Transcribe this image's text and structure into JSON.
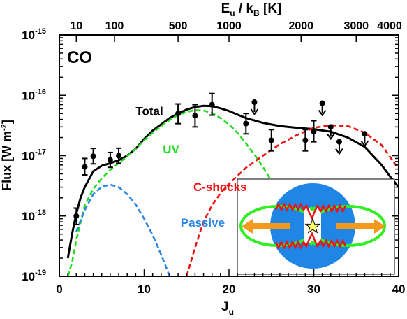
{
  "chart_data": {
    "type": "line",
    "panel_label": "CO",
    "xlabel": "J",
    "xlabel_sub": "u",
    "ylabel": "Flux [W m",
    "ylabel_sup": "-2",
    "ylabel_end": "]",
    "top_axis": {
      "label_main": "E",
      "label_sub1": "u",
      "label_mid": " / k",
      "label_sub2": "B",
      "label_end": " [K]",
      "ticks": [
        {
          "J": 2.0,
          "label": "10"
        },
        {
          "J": 6.5,
          "label": "100"
        },
        {
          "J": 14.0,
          "label": "500"
        },
        {
          "J": 20.0,
          "label": "1000"
        },
        {
          "J": 28.5,
          "label": "2000"
        },
        {
          "J": 35.0,
          "label": "3000"
        },
        {
          "J": 40.5,
          "label": "4000"
        }
      ]
    },
    "xlim": [
      0,
      40
    ],
    "ylim_log10": [
      -19,
      -15
    ],
    "log_y": true,
    "x_ticks": [
      0,
      10,
      20,
      30,
      40
    ],
    "y_ticks": [
      {
        "exp": -15,
        "base": "10",
        "power": "-15"
      },
      {
        "exp": -16,
        "base": "10",
        "power": "-16"
      },
      {
        "exp": -17,
        "base": "10",
        "power": "-17"
      },
      {
        "exp": -18,
        "base": "10",
        "power": "-18"
      },
      {
        "exp": -19,
        "base": "10",
        "power": "-19"
      }
    ],
    "series": [
      {
        "name": "Total",
        "color": "#000000",
        "style": "solid",
        "x": [
          1.0,
          1.5,
          2.0,
          2.5,
          3.0,
          4.0,
          5.0,
          6.0,
          7.0,
          8.0,
          9.0,
          10.0,
          11.0,
          12.0,
          13.0,
          14.0,
          15.0,
          16.0,
          17.0,
          18.0,
          19.0,
          20.0,
          21.0,
          22.0,
          24.0,
          26.0,
          28.0,
          30.0,
          32.0,
          34.0,
          36.0,
          38.0,
          39.0,
          40.0
        ],
        "y": [
          2e-19,
          5e-19,
          1.1e-18,
          2e-18,
          3e-18,
          5.5e-18,
          6.8e-18,
          7.5e-18,
          8.4e-18,
          1e-17,
          1.3e-17,
          1.9e-17,
          2.6e-17,
          3.3e-17,
          4.2e-17,
          5e-17,
          5.8e-17,
          6.4e-17,
          6.7e-17,
          6.6e-17,
          6.1e-17,
          5.5e-17,
          4.8e-17,
          4.2e-17,
          3.5e-17,
          3.1e-17,
          2.9e-17,
          2.75e-17,
          2.5e-17,
          2e-17,
          1.4e-17,
          7e-18,
          4.5e-18,
          3e-18
        ]
      },
      {
        "name": "UV",
        "color": "#22dd22",
        "style": "dashed",
        "x": [
          1.0,
          1.5,
          2.0,
          3.0,
          4.0,
          5.0,
          6.0,
          7.0,
          8.0,
          9.0,
          10.0,
          11.0,
          12.0,
          13.0,
          14.0,
          15.0,
          16.0,
          17.0,
          18.0,
          19.0,
          20.0,
          21.0,
          22.0,
          23.0,
          24.0,
          25.0,
          26.0,
          27.0
        ],
        "y": [
          1e-19,
          1.7e-19,
          4e-19,
          1.5e-18,
          2.8e-18,
          4.2e-18,
          5.8e-18,
          7.5e-18,
          9.8e-18,
          1.3e-17,
          1.8e-17,
          2.4e-17,
          3.1e-17,
          3.9e-17,
          4.7e-17,
          5.3e-17,
          5.7e-17,
          5.6e-17,
          5.1e-17,
          4.2e-17,
          3.3e-17,
          2.4e-17,
          1.6e-17,
          1.05e-17,
          6.5e-18,
          3.8e-18,
          2.1e-18,
          1.3e-18
        ]
      },
      {
        "name": "C-shocks",
        "color": "#ee1111",
        "style": "dashed",
        "x": [
          15.0,
          16.0,
          17.0,
          18.0,
          19.0,
          20.0,
          22.0,
          24.0,
          26.0,
          28.0,
          30.0,
          32.0,
          34.0,
          36.0,
          38.0,
          40.0
        ],
        "y": [
          1e-19,
          3e-19,
          8e-19,
          1.5e-18,
          2.4e-18,
          3.4e-18,
          6.3e-18,
          1e-17,
          1.55e-17,
          2.2e-17,
          2.9e-17,
          3.2e-17,
          3.1e-17,
          2.4e-17,
          1.5e-17,
          6e-18
        ]
      },
      {
        "name": "Passive",
        "color": "#2a86e6",
        "style": "dashed",
        "x": [
          2.0,
          3.0,
          4.0,
          5.0,
          6.0,
          7.0,
          8.0,
          9.0,
          10.0,
          11.0,
          12.0,
          13.0
        ],
        "y": [
          5.5e-19,
          1.25e-18,
          2.3e-18,
          3.05e-18,
          3.3e-18,
          3e-18,
          2.3e-18,
          1.55e-18,
          9e-19,
          4.8e-19,
          2.3e-19,
          1e-19
        ]
      }
    ],
    "detections": [
      {
        "x": 2,
        "y": 1e-18,
        "lo": 7.2e-19,
        "hi": 1.35e-18
      },
      {
        "x": 3,
        "y": 6.5e-18,
        "lo": 4.8e-18,
        "hi": 9e-18
      },
      {
        "x": 4,
        "y": 9.8e-18,
        "lo": 7.3e-18,
        "hi": 1.32e-17
      },
      {
        "x": 6,
        "y": 8.5e-18,
        "lo": 6.4e-18,
        "hi": 1.13e-17
      },
      {
        "x": 7,
        "y": 1e-17,
        "lo": 7.5e-18,
        "hi": 1.33e-17
      },
      {
        "x": 14,
        "y": 5e-17,
        "lo": 3.4e-17,
        "hi": 7.2e-17
      },
      {
        "x": 16,
        "y": 4.6e-17,
        "lo": 3e-17,
        "hi": 7e-17
      },
      {
        "x": 18,
        "y": 7e-17,
        "lo": 4.7e-17,
        "hi": 1.07e-16
      },
      {
        "x": 22,
        "y": 3.4e-17,
        "lo": 2.3e-17,
        "hi": 5e-17
      },
      {
        "x": 25,
        "y": 1.8e-17,
        "lo": 1.2e-17,
        "hi": 2.7e-17
      },
      {
        "x": 29,
        "y": 1.8e-17,
        "lo": 1.2e-17,
        "hi": 2.7e-17
      },
      {
        "x": 30,
        "y": 2.5e-17,
        "lo": 1.7e-17,
        "hi": 3.8e-17
      }
    ],
    "upper_limits": [
      {
        "x": 23,
        "y": 7.7e-17
      },
      {
        "x": 31,
        "y": 7.4e-17
      },
      {
        "x": 32,
        "y": 3e-17
      },
      {
        "x": 33,
        "y": 1.7e-17
      },
      {
        "x": 36,
        "y": 2.3e-17
      }
    ],
    "labels": [
      {
        "text": "Total",
        "x": 9.0,
        "y": 4.7e-17,
        "color": "#000000"
      },
      {
        "text": "UV",
        "x": 12.2,
        "y": 1.1e-17,
        "color": "#22dd22"
      },
      {
        "text": "C-shocks",
        "x": 15.8,
        "y": 2.6e-18,
        "color": "#ee1111"
      },
      {
        "text": "Passive",
        "x": 14.3,
        "y": 6.7e-19,
        "color": "#2a86e6"
      }
    ],
    "inset": {
      "disk_color": "#1f86e6",
      "lobe_color": "#33ee22",
      "shock_color": "#ee1111",
      "arrow_color": "#f39a1c",
      "star_color": "#ffff66"
    }
  }
}
